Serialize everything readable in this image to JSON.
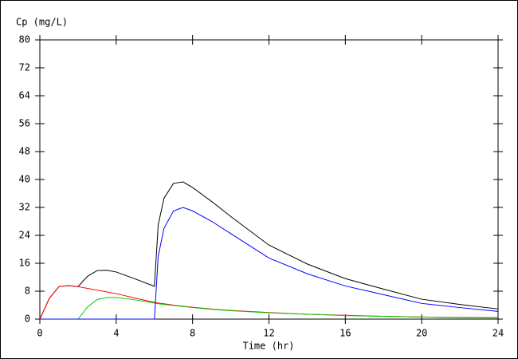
{
  "chart_data": {
    "type": "line",
    "y_label": "Cp (mg/L)",
    "x_label": "Time (hr)",
    "x": [
      0,
      0.5,
      1,
      1.5,
      2,
      2.5,
      3,
      3.5,
      4,
      5,
      6,
      6.2,
      6.5,
      7,
      7.5,
      8,
      9,
      10,
      12,
      14,
      16,
      18,
      20,
      22,
      24
    ],
    "series": [
      {
        "color": "#000000",
        "values": [
          0,
          6,
          9.3,
          9.6,
          9.3,
          12.3,
          13.9,
          14.0,
          13.5,
          11.5,
          9.4,
          27.0,
          34.6,
          38.9,
          39.3,
          37.7,
          33.7,
          29.4,
          21.2,
          15.8,
          11.6,
          8.6,
          5.7,
          4.2,
          2.9
        ]
      },
      {
        "color": "#ff0000",
        "values": [
          0,
          6,
          9.3,
          9.6,
          9.3,
          8.8,
          8.3,
          7.8,
          7.3,
          6.0,
          4.8,
          4.6,
          4.4,
          4.0,
          3.7,
          3.4,
          2.9,
          2.5,
          1.9,
          1.4,
          1.1,
          0.8,
          0.6,
          0.5,
          0.4
        ]
      },
      {
        "color": "#00cc00",
        "values": [
          0,
          0,
          0,
          0,
          0,
          3.5,
          5.6,
          6.2,
          6.2,
          5.5,
          4.6,
          4.4,
          4.2,
          3.9,
          3.6,
          3.3,
          2.8,
          2.4,
          1.8,
          1.4,
          1.0,
          0.8,
          0.6,
          0.4,
          0.3
        ]
      },
      {
        "color": "#0000ff",
        "values": [
          0,
          0,
          0,
          0,
          0,
          0,
          0,
          0,
          0,
          0,
          0,
          18,
          26,
          31,
          32,
          31,
          28,
          24.5,
          17.5,
          13,
          9.5,
          7,
          4.5,
          3.3,
          2.2
        ]
      }
    ],
    "xlim": [
      0,
      24
    ],
    "xticks": [
      0,
      4,
      8,
      12,
      16,
      20,
      24
    ],
    "ylim": [
      0,
      80
    ],
    "yticks": [
      0,
      8,
      16,
      24,
      32,
      40,
      48,
      56,
      64,
      72,
      80
    ]
  }
}
